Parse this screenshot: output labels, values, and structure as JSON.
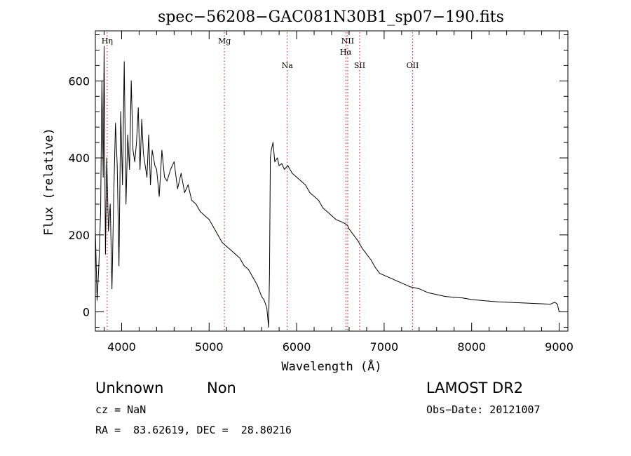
{
  "chart_data": {
    "type": "line",
    "title": "spec−56208−GAC081N30B1_sp07−190.fits",
    "xlabel": "Wavelength (Å)",
    "ylabel": "Flux (relative)",
    "xlim": [
      3700,
      9100
    ],
    "ylim": [
      -50,
      730
    ],
    "x_ticks": [
      4000,
      5000,
      6000,
      7000,
      8000,
      9000
    ],
    "y_ticks": [
      0,
      200,
      400,
      600
    ],
    "grid": false,
    "series": [
      {
        "line_color": "#000000",
        "x": [
          3700,
          3720,
          3740,
          3760,
          3775,
          3790,
          3800,
          3815,
          3830,
          3850,
          3870,
          3890,
          3910,
          3930,
          3950,
          3970,
          3990,
          4010,
          4030,
          4050,
          4070,
          4090,
          4110,
          4130,
          4150,
          4170,
          4190,
          4210,
          4230,
          4250,
          4270,
          4290,
          4310,
          4330,
          4350,
          4380,
          4400,
          4430,
          4460,
          4490,
          4520,
          4560,
          4600,
          4640,
          4680,
          4720,
          4760,
          4800,
          4850,
          4900,
          4950,
          5000,
          5050,
          5100,
          5150,
          5200,
          5250,
          5300,
          5350,
          5400,
          5450,
          5500,
          5550,
          5600,
          5630,
          5660,
          5680,
          5690,
          5700,
          5710,
          5730,
          5750,
          5780,
          5800,
          5830,
          5860,
          5900,
          5950,
          6000,
          6050,
          6100,
          6150,
          6200,
          6250,
          6300,
          6350,
          6400,
          6450,
          6500,
          6550,
          6580,
          6600,
          6650,
          6700,
          6750,
          6800,
          6850,
          6900,
          6950,
          7000,
          7050,
          7100,
          7150,
          7200,
          7300,
          7400,
          7500,
          7600,
          7700,
          7800,
          7900,
          8000,
          8100,
          8200,
          8300,
          8400,
          8500,
          8600,
          8700,
          8800,
          8900,
          8950,
          8980,
          9000
        ],
        "y": [
          210,
          30,
          120,
          260,
          600,
          350,
          690,
          150,
          400,
          210,
          280,
          60,
          300,
          490,
          380,
          120,
          520,
          330,
          650,
          280,
          460,
          370,
          600,
          420,
          390,
          440,
          530,
          370,
          500,
          410,
          380,
          350,
          460,
          330,
          420,
          380,
          370,
          300,
          420,
          350,
          340,
          370,
          390,
          320,
          360,
          310,
          330,
          290,
          280,
          260,
          250,
          240,
          220,
          200,
          180,
          170,
          160,
          150,
          140,
          120,
          110,
          90,
          70,
          40,
          30,
          10,
          -40,
          100,
          400,
          420,
          440,
          390,
          400,
          380,
          385,
          370,
          380,
          360,
          350,
          340,
          330,
          310,
          300,
          290,
          270,
          260,
          250,
          240,
          235,
          230,
          225,
          215,
          200,
          185,
          165,
          150,
          135,
          115,
          100,
          95,
          90,
          85,
          80,
          75,
          65,
          60,
          50,
          45,
          40,
          38,
          36,
          32,
          30,
          28,
          26,
          25,
          24,
          23,
          22,
          21,
          20,
          25,
          20,
          0
        ]
      }
    ],
    "emission_lines": [
      {
        "label": "Hη",
        "x": 3835,
        "label_row": "top"
      },
      {
        "label": "Mg",
        "x": 5175,
        "label_row": "top"
      },
      {
        "label": "Na",
        "x": 5893,
        "label_row": "low"
      },
      {
        "label": "NII",
        "x": 6584,
        "label_row": "top"
      },
      {
        "label": "Hα",
        "x": 6563,
        "label_row": "mid"
      },
      {
        "label": "SII",
        "x": 6720,
        "label_row": "low"
      },
      {
        "label": "OII",
        "x": 7325,
        "label_row": "low"
      }
    ]
  },
  "info": {
    "class": "Unknown",
    "subclass": "Non",
    "survey": "LAMOST DR2",
    "cz": "cz = NaN",
    "obs_date": "Obs−Date: 20121007",
    "radec": "RA =  83.62619, DEC =  28.80216"
  }
}
